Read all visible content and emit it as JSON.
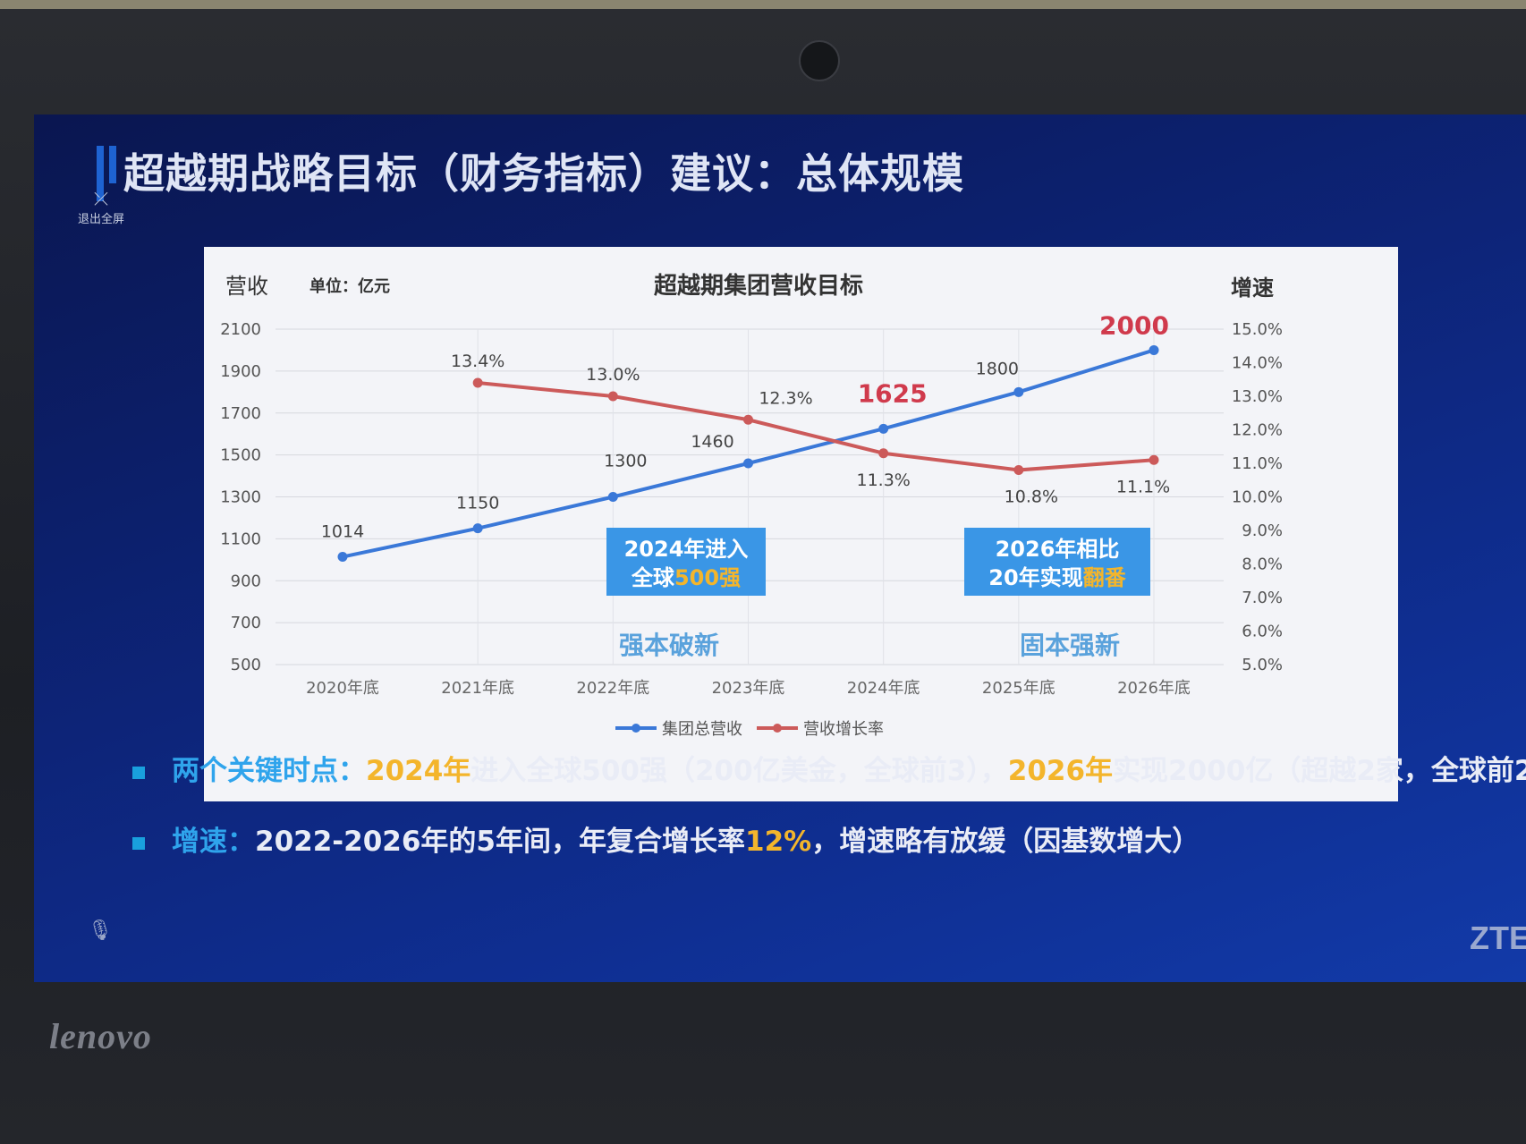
{
  "device": {
    "brand": "lenovo"
  },
  "slide": {
    "title": "超越期战略目标（财务指标）建议：总体规模",
    "exit_fullscreen": "退出全屏",
    "logo": "ZTE",
    "bullets": [
      {
        "label": "两个关键时点：",
        "parts": [
          {
            "text": "2024年",
            "hl": true
          },
          {
            "text": "进入全球500强（200亿美金，全球前3），",
            "hl": false
          },
          {
            "text": "2026年",
            "hl": true
          },
          {
            "text": "实现2000亿（超越2家，全球前2",
            "hl": false
          }
        ]
      },
      {
        "label": "增速：",
        "parts": [
          {
            "text": "2022-2026年的5年间，年复合增长率",
            "hl": false
          },
          {
            "text": "12%",
            "hl": true
          },
          {
            "text": "，增速略有放缓（因基数增大）",
            "hl": false
          }
        ]
      }
    ]
  },
  "chart_data": {
    "type": "line",
    "title": "超越期集团营收目标",
    "ylabel": "营收",
    "unit": "单位：亿元",
    "y2label": "增速",
    "categories": [
      "2020年底",
      "2021年底",
      "2022年底",
      "2023年底",
      "2024年底",
      "2025年底",
      "2026年底"
    ],
    "ylim": [
      500,
      2100
    ],
    "yticks": [
      "2100",
      "1900",
      "1700",
      "1500",
      "1300",
      "1100",
      "900",
      "700",
      "500"
    ],
    "y2lim": [
      5.0,
      15.0
    ],
    "y2ticks": [
      "15.0%",
      "14.0%",
      "13.0%",
      "12.0%",
      "11.0%",
      "10.0%",
      "9.0%",
      "8.0%",
      "7.0%",
      "6.0%",
      "5.0%"
    ],
    "series": [
      {
        "name": "集团总营收",
        "axis": "left",
        "color": "#3a78d8",
        "values": [
          1014,
          1150,
          1300,
          1460,
          1625,
          1800,
          2000
        ],
        "labels": [
          "1014",
          "1150",
          "1300",
          "1460",
          "1625",
          "1800",
          "2000"
        ]
      },
      {
        "name": "营收增长率",
        "axis": "right",
        "color": "#cc5a5a",
        "values": [
          null,
          13.4,
          13.0,
          12.3,
          11.3,
          10.8,
          11.1
        ],
        "labels": [
          "",
          "13.4%",
          "13.0%",
          "12.3%",
          "11.3%",
          "10.8%",
          "11.1%"
        ]
      }
    ],
    "callouts": [
      {
        "line1": "2024年进入",
        "line2a": "全球",
        "line2b": "500强",
        "color": "#3a96e6"
      },
      {
        "line1": "2026年相比",
        "line2a": "20年实现",
        "line2b": "翻番",
        "color": "#3a96e6"
      }
    ],
    "phase_labels": [
      "强本破新",
      "固本强新"
    ],
    "legend_position": "bottom",
    "grid": true
  }
}
